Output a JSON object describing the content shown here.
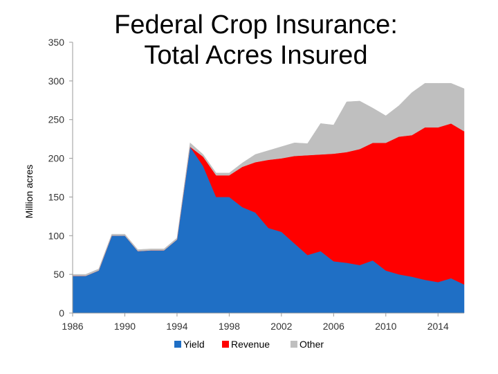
{
  "chart_data": {
    "type": "area",
    "stacked": true,
    "title": [
      "Federal Crop Insurance:",
      "Total Acres Insured"
    ],
    "xlabel": "",
    "ylabel": "Million acres",
    "xlim": [
      1986,
      2016
    ],
    "ylim": [
      0,
      350
    ],
    "x_ticks": [
      "1986",
      "1990",
      "1994",
      "1998",
      "2002",
      "2006",
      "2010",
      "2014"
    ],
    "y_ticks": [
      "0",
      "50",
      "100",
      "150",
      "200",
      "250",
      "300",
      "350"
    ],
    "grid": false,
    "legend_position": "bottom",
    "x": [
      1986,
      1987,
      1988,
      1989,
      1990,
      1991,
      1992,
      1993,
      1994,
      1995,
      1996,
      1997,
      1998,
      1999,
      2000,
      2001,
      2002,
      2003,
      2004,
      2005,
      2006,
      2007,
      2008,
      2009,
      2010,
      2011,
      2012,
      2013,
      2014,
      2015,
      2016
    ],
    "series": [
      {
        "name": "Yield",
        "color": "#1f6fc5",
        "values": [
          48,
          48,
          55,
          100,
          100,
          80,
          81,
          81,
          95,
          215,
          190,
          150,
          150,
          137,
          130,
          110,
          105,
          90,
          75,
          80,
          67,
          65,
          62,
          68,
          55,
          50,
          47,
          43,
          40,
          45,
          37
        ]
      },
      {
        "name": "Revenue",
        "color": "#ff0000",
        "values": [
          0,
          0,
          0,
          0,
          0,
          0,
          0,
          0,
          0,
          0,
          12,
          28,
          28,
          52,
          65,
          88,
          95,
          113,
          129,
          125,
          139,
          143,
          150,
          152,
          165,
          178,
          183,
          197,
          200,
          200,
          198
        ]
      },
      {
        "name": "Other",
        "color": "#bfbfbf",
        "values": [
          2,
          2,
          2,
          2,
          2,
          2,
          2,
          2,
          2,
          5,
          3,
          3,
          3,
          5,
          10,
          12,
          15,
          17,
          15,
          40,
          37,
          65,
          62,
          45,
          35,
          40,
          55,
          57,
          57,
          52,
          55
        ]
      }
    ]
  }
}
